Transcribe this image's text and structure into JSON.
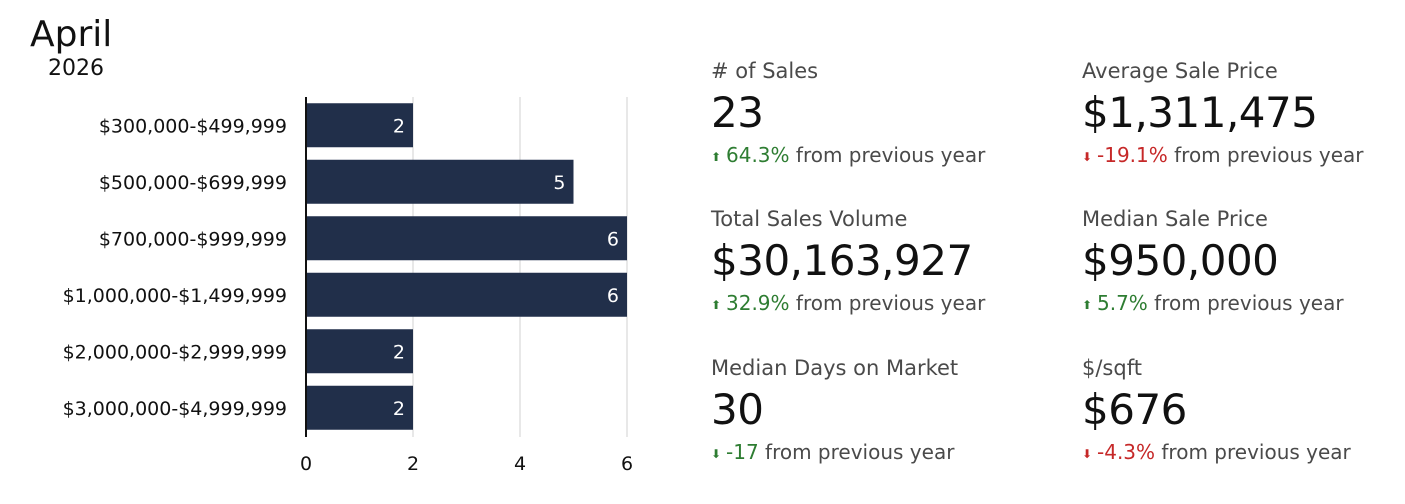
{
  "header": {
    "month": "April",
    "year": "2026"
  },
  "colors": {
    "bar": "#212f4a",
    "grid": "#d9d9d9",
    "axis": "#111111",
    "positive": "#2e7d32",
    "negative": "#c62828"
  },
  "chart_data": {
    "type": "bar",
    "orientation": "horizontal",
    "categories": [
      "$300,000-$499,999",
      "$500,000-$699,999",
      "$700,000-$999,999",
      "$1,000,000-$1,499,999",
      "$2,000,000-$2,999,999",
      "$3,000,000-$4,999,999"
    ],
    "values": [
      2,
      5,
      6,
      6,
      2,
      2
    ],
    "data_labels": [
      "2",
      "5",
      "6",
      "6",
      "2",
      "2"
    ],
    "xticks": [
      "0",
      "2",
      "4",
      "6"
    ],
    "xlim": [
      0,
      6.1
    ],
    "grid": true
  },
  "stats": {
    "sales_count": {
      "label": "# of Sales",
      "value": "23",
      "arrow": "up-arrow-icon",
      "change": "64.3%",
      "suffix": "from previous year"
    },
    "avg_price": {
      "label": "Average Sale Price",
      "value": "$1,311,475",
      "arrow": "down-arrow-icon",
      "change": "-19.1%",
      "suffix": "from previous year"
    },
    "total_volume": {
      "label": "Total Sales Volume",
      "value": "$30,163,927",
      "arrow": "up-arrow-icon",
      "change": "32.9%",
      "suffix": "from previous year"
    },
    "median_price": {
      "label": "Median Sale Price",
      "value": "$950,000",
      "arrow": "up-arrow-icon",
      "change": "5.7%",
      "suffix": "from previous year"
    },
    "median_days": {
      "label": "Median Days on Market",
      "value": "30",
      "arrow": "down-arrow-icon",
      "change": "-17",
      "suffix": "from previous year"
    },
    "price_sqft": {
      "label": "$/sqft",
      "value": "$676",
      "arrow": "down-arrow-icon",
      "change": "-4.3%",
      "suffix": "from previous year"
    }
  }
}
